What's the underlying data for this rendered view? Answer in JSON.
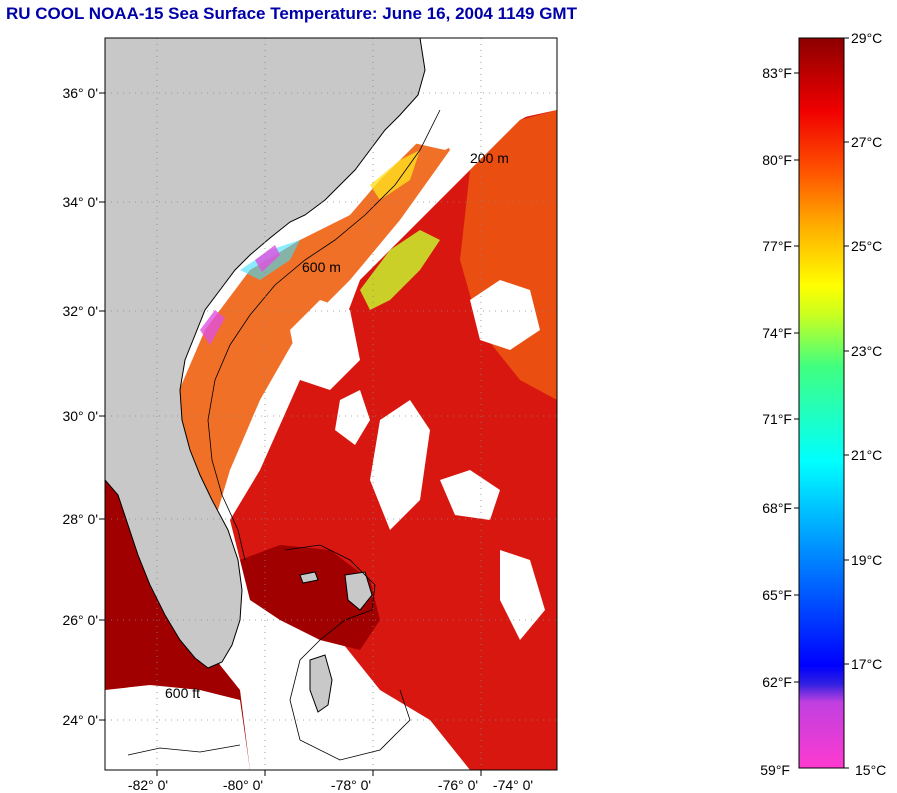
{
  "title": "RU COOL  NOAA-15  Sea Surface Temperature:  June 16, 2004 1149 GMT",
  "map": {
    "lat_labels": [
      "36° 0'",
      "34° 0'",
      "32° 0'",
      "30° 0'",
      "28° 0'",
      "26° 0'",
      "24° 0'"
    ],
    "lon_labels": [
      "-82° 0'",
      "-80° 0'",
      "-78° 0'",
      "-76° 0'",
      "-74° 0'"
    ],
    "contour_labels": [
      "200 m",
      "600 m",
      "600 ft"
    ]
  },
  "colorbar": {
    "fahrenheit_labels": [
      "83°F",
      "80°F",
      "77°F",
      "74°F",
      "71°F",
      "68°F",
      "65°F",
      "62°F",
      "59°F"
    ],
    "celsius_labels": [
      "29°C",
      "27°C",
      "25°C",
      "23°C",
      "21°C",
      "19°C",
      "17°C",
      "15°C"
    ]
  },
  "colors": {
    "title": "#0000a8",
    "land": "#c8c8c8",
    "sst_warm": "#d81810",
    "sst_hot": "#a00000",
    "sst_mid": "#f06010",
    "cloud": "#ffffff"
  }
}
